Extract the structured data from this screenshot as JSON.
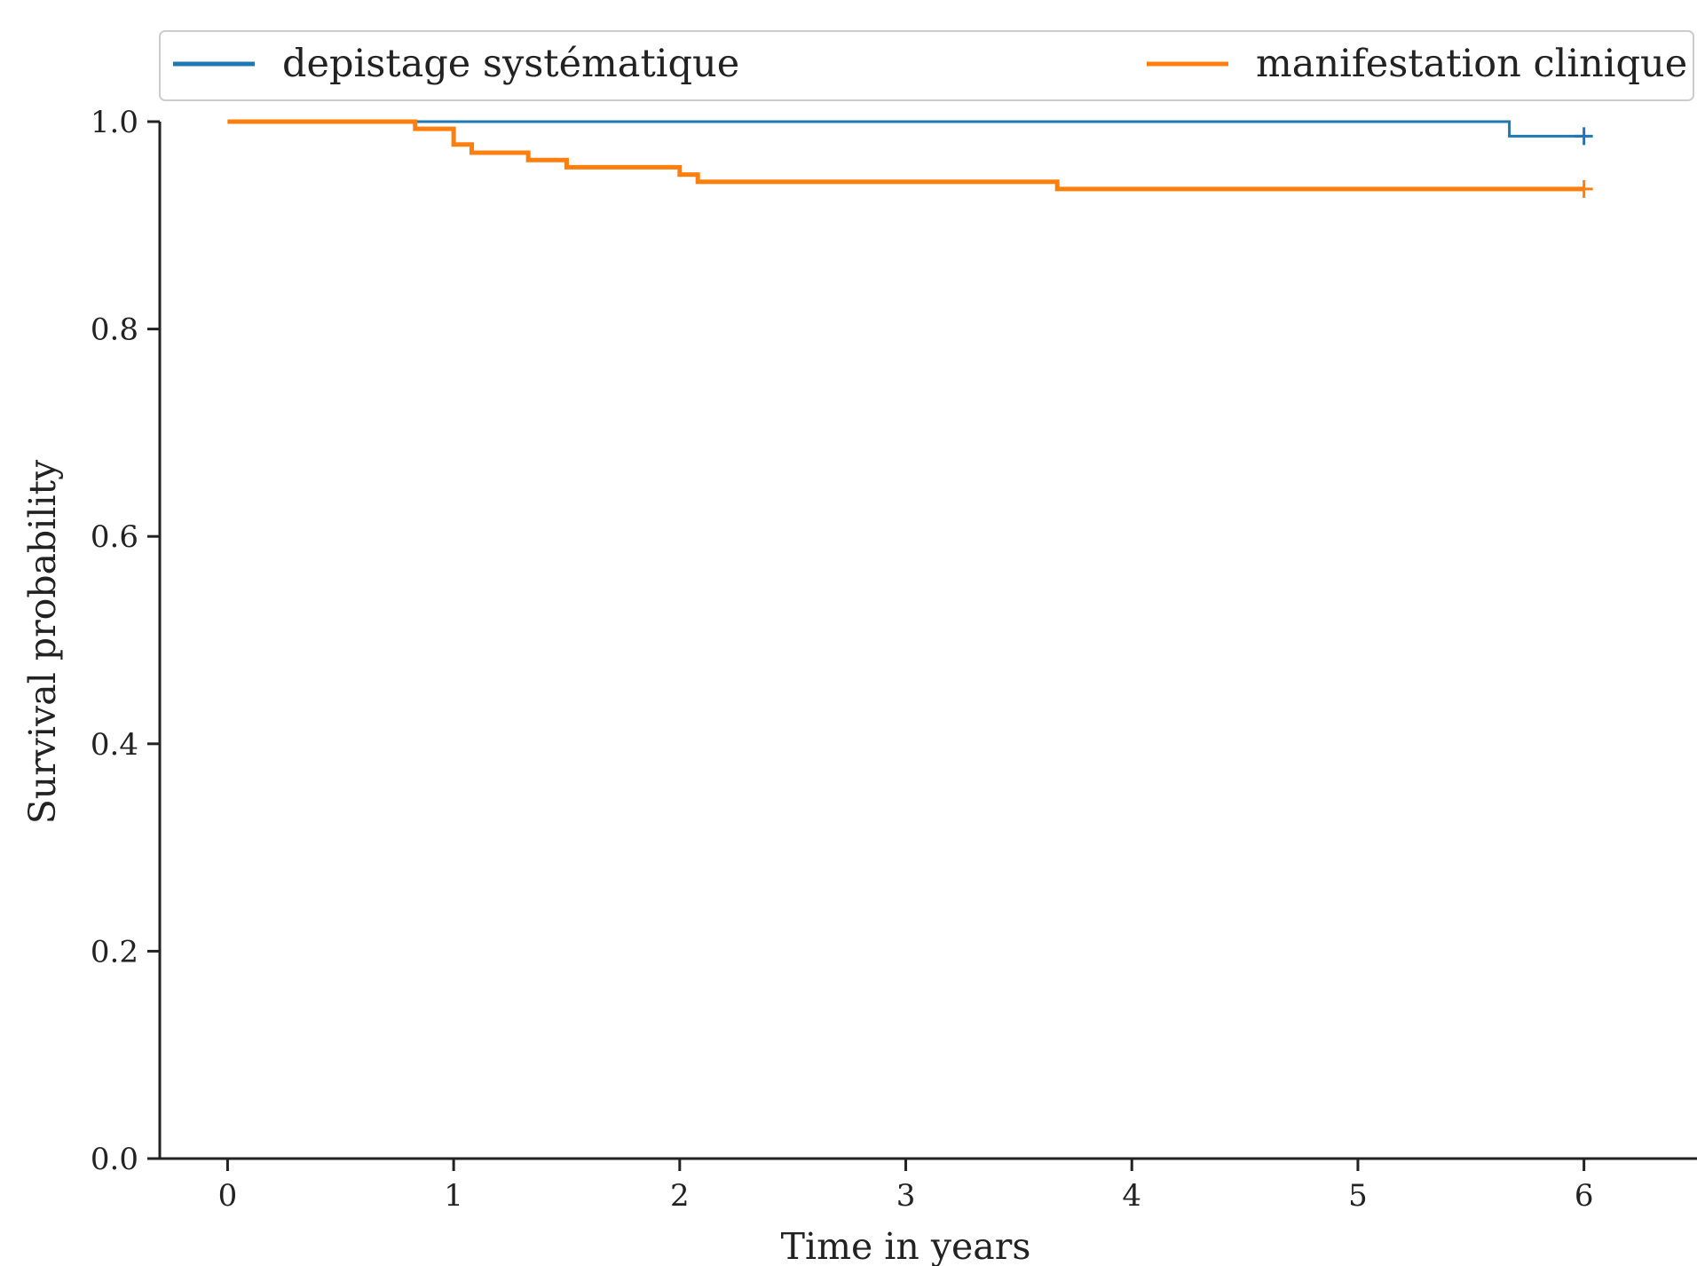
{
  "chart_data": {
    "type": "line",
    "title": "",
    "xlabel": "Time in years",
    "ylabel": "Survival probability",
    "xlim": [
      -0.3,
      6.5
    ],
    "ylim": [
      0.0,
      1.0
    ],
    "x_ticks": [
      0,
      1,
      2,
      3,
      4,
      5,
      6
    ],
    "y_ticks": [
      0.0,
      0.2,
      0.4,
      0.6,
      0.8,
      1.0
    ],
    "x_tick_labels": [
      "0",
      "1",
      "2",
      "3",
      "4",
      "5",
      "6"
    ],
    "y_tick_labels": [
      "0.0",
      "0.2",
      "0.4",
      "0.6",
      "0.8",
      "1.0"
    ],
    "grid": false,
    "legend_position": "top",
    "step": "post",
    "series": [
      {
        "name": "depistage systématique",
        "color": "#1f77b4",
        "x": [
          0,
          5.67,
          6.0
        ],
        "y": [
          1.0,
          0.986,
          0.986
        ],
        "censored": [
          {
            "x": 6.0,
            "y": 0.986
          }
        ]
      },
      {
        "name": "manifestation clinique",
        "color": "#ff7f0e",
        "x": [
          0,
          0.83,
          1.0,
          1.08,
          1.33,
          1.5,
          2.0,
          2.08,
          3.67,
          6.0
        ],
        "y": [
          1.0,
          0.993,
          0.978,
          0.97,
          0.963,
          0.956,
          0.949,
          0.942,
          0.935,
          0.935
        ],
        "censored": [
          {
            "x": 6.0,
            "y": 0.935
          }
        ]
      }
    ]
  }
}
